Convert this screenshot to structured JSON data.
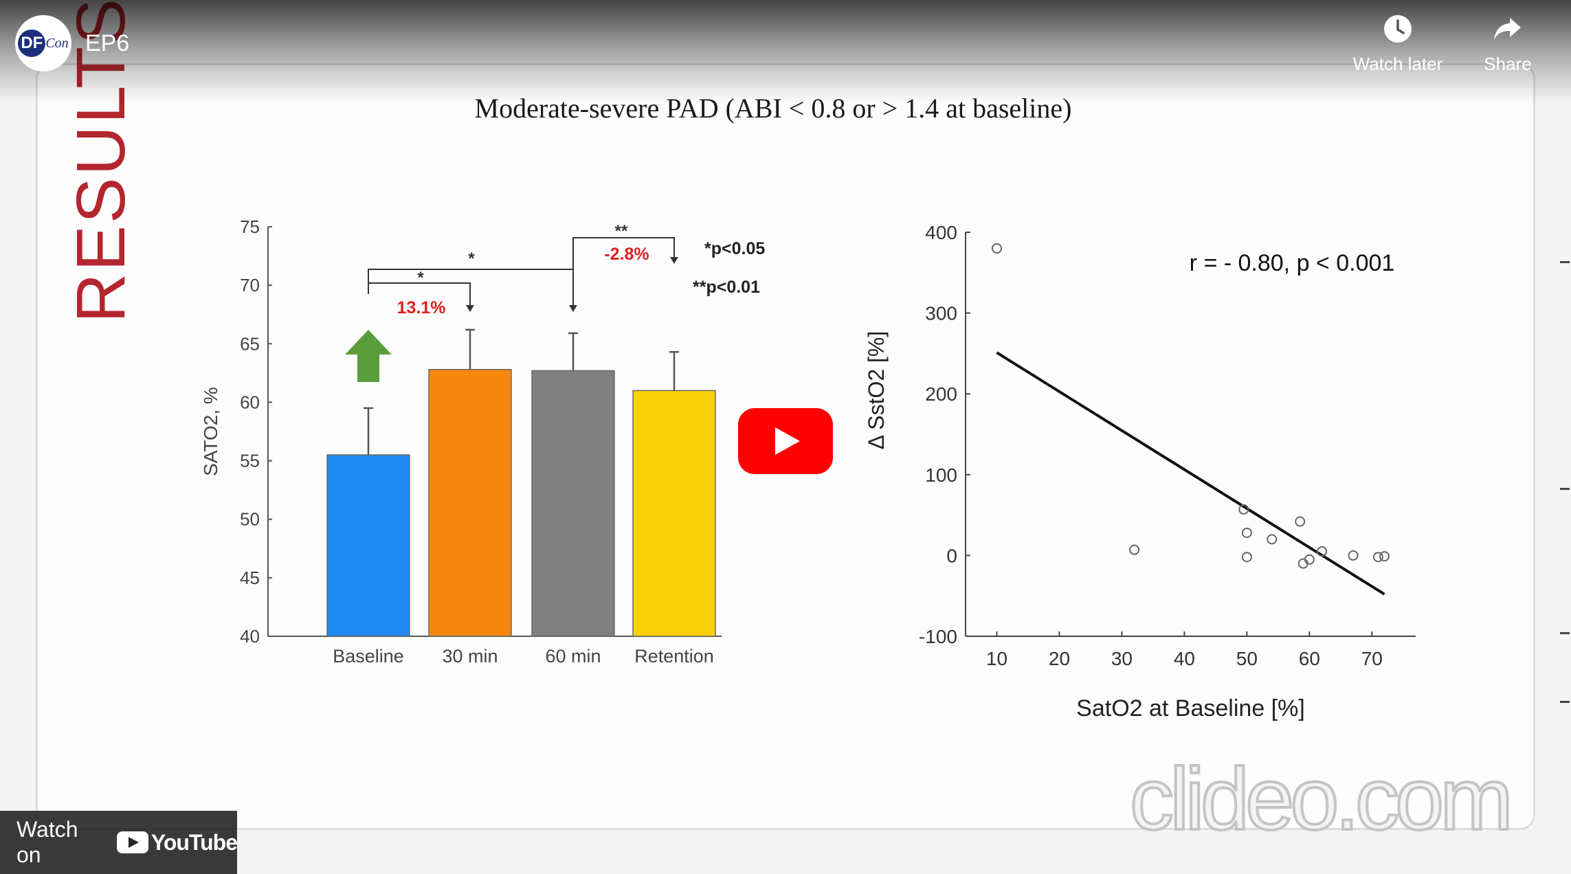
{
  "header": {
    "channel_logo_text": "DF",
    "channel_logo_suffix": "Con",
    "video_title": "EP6",
    "watch_later_label": "Watch later",
    "share_label": "Share",
    "watch_later_icon": "clock-icon",
    "share_icon": "share-arrow-icon"
  },
  "slide": {
    "side_label": "RESULTS",
    "title": "Moderate-severe PAD (ABI < 0.8 or > 1.4 at baseline)"
  },
  "bar_annotations": {
    "sig_star_1": "*",
    "sig_star_2": "*",
    "sig_star_3": "**",
    "pct_up": "13.1%",
    "pct_down": "-2.8%",
    "legend_p05": "*p<0.05",
    "legend_p01": "**p<0.01"
  },
  "scatter_annotation": "r = - 0.80, p < 0.001",
  "player": {
    "watch_on_label": "Watch on",
    "youtube_label": "YouTube",
    "play_icon": "play-icon",
    "watermark": "clideo.com"
  },
  "colors": {
    "baseline": "#1e88f0",
    "min30": "#f7870f",
    "min60": "#808080",
    "retention": "#fdd10a",
    "arrow": "#5a9e3c",
    "results_red": "#b3262e",
    "annotation_red": "#e02020",
    "youtube_red": "#ff0000"
  },
  "chart_data": [
    {
      "type": "bar",
      "title": "",
      "xlabel": "",
      "ylabel": "SATO2, %",
      "categories": [
        "Baseline",
        "30 min",
        "60 min",
        "Retention"
      ],
      "values": [
        55.5,
        62.8,
        62.7,
        61.0
      ],
      "error_upper": [
        59.5,
        66.2,
        65.9,
        64.3
      ],
      "ylim": [
        40,
        75
      ],
      "yticks": [
        40,
        45,
        50,
        55,
        60,
        65,
        70,
        75
      ],
      "grid": false
    },
    {
      "type": "scatter",
      "title": "",
      "xlabel": "SatO2 at Baseline [%]",
      "ylabel": "Δ SstO2 [%]",
      "xlim": [
        5,
        77
      ],
      "ylim": [
        -100,
        400
      ],
      "xticks": [
        10,
        20,
        30,
        40,
        50,
        60,
        70
      ],
      "yticks": [
        -100,
        0,
        100,
        200,
        300,
        400
      ],
      "points": [
        [
          10,
          380
        ],
        [
          32,
          7
        ],
        [
          49.5,
          57
        ],
        [
          50,
          28
        ],
        [
          50,
          -2
        ],
        [
          54,
          20
        ],
        [
          58.5,
          42
        ],
        [
          59,
          -10
        ],
        [
          60,
          -5
        ],
        [
          62,
          5
        ],
        [
          67,
          0
        ],
        [
          71,
          -2
        ],
        [
          72,
          -1
        ]
      ],
      "fit_line": [
        [
          10,
          251
        ],
        [
          72,
          -48
        ]
      ],
      "grid": false
    }
  ]
}
